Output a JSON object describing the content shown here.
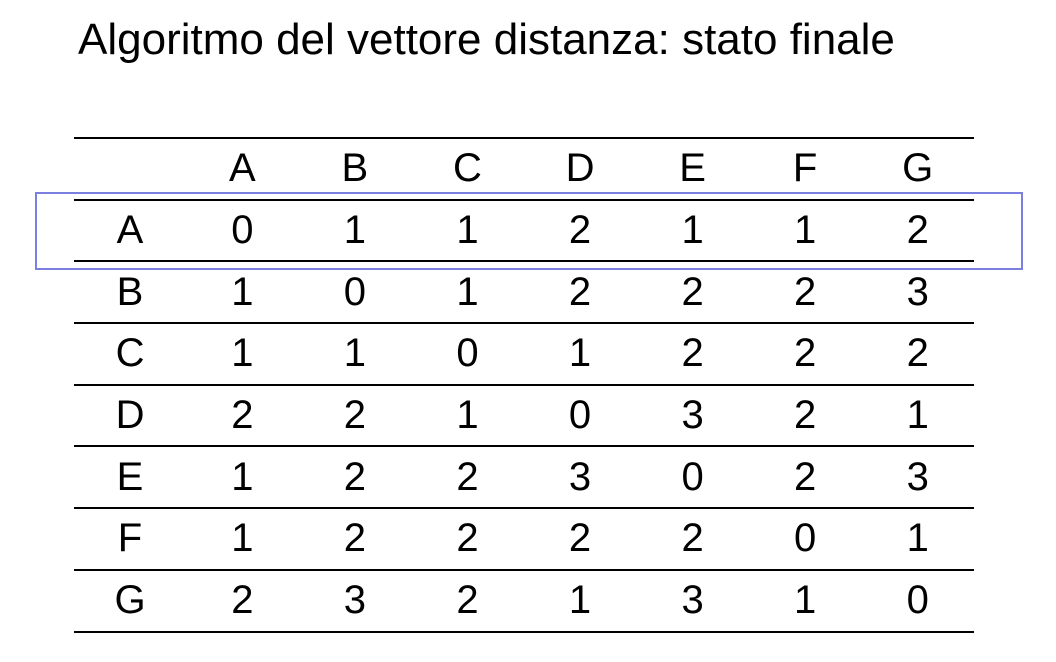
{
  "title": "Algoritmo del vettore distanza: stato finale",
  "columns": [
    "",
    "A",
    "B",
    "C",
    "D",
    "E",
    "F",
    "G"
  ],
  "rows": [
    {
      "label": "A",
      "values": [
        "0",
        "1",
        "1",
        "2",
        "1",
        "1",
        "2"
      ]
    },
    {
      "label": "B",
      "values": [
        "1",
        "0",
        "1",
        "2",
        "2",
        "2",
        "3"
      ]
    },
    {
      "label": "C",
      "values": [
        "1",
        "1",
        "0",
        "1",
        "2",
        "2",
        "2"
      ]
    },
    {
      "label": "D",
      "values": [
        "2",
        "2",
        "1",
        "0",
        "3",
        "2",
        "1"
      ]
    },
    {
      "label": "E",
      "values": [
        "1",
        "2",
        "2",
        "3",
        "0",
        "2",
        "3"
      ]
    },
    {
      "label": "F",
      "values": [
        "1",
        "2",
        "2",
        "2",
        "2",
        "0",
        "1"
      ]
    },
    {
      "label": "G",
      "values": [
        "2",
        "3",
        "2",
        "1",
        "3",
        "1",
        "0"
      ]
    }
  ],
  "highlight_color": "#7b7fe0"
}
